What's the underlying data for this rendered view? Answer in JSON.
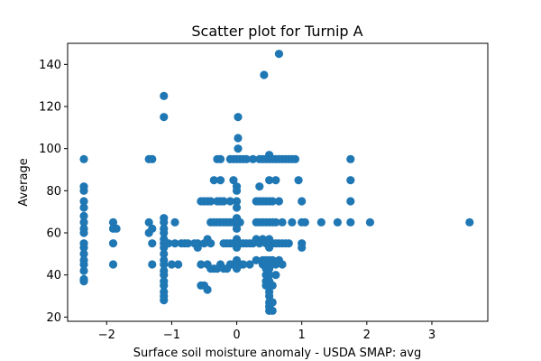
{
  "chart_data": {
    "type": "scatter",
    "title": "Scatter plot for Turnip A",
    "xlabel": "Surface soil moisture anomaly  - USDA SMAP: avg",
    "ylabel": "Average",
    "xlim": [
      -2.6,
      3.86
    ],
    "ylim": [
      18,
      150
    ],
    "xticks": [
      -2,
      -1,
      0,
      1,
      2,
      3
    ],
    "yticks": [
      20,
      40,
      60,
      80,
      100,
      120,
      140
    ],
    "grid": false,
    "marker_color": "#1f77b4",
    "points": [
      [
        -2.35,
        95
      ],
      [
        -2.35,
        82
      ],
      [
        -2.35,
        80
      ],
      [
        -2.35,
        75
      ],
      [
        -2.35,
        72
      ],
      [
        -2.35,
        68
      ],
      [
        -2.35,
        65
      ],
      [
        -2.35,
        62
      ],
      [
        -2.35,
        60
      ],
      [
        -2.35,
        55
      ],
      [
        -2.35,
        53
      ],
      [
        -2.35,
        50
      ],
      [
        -2.35,
        47
      ],
      [
        -2.35,
        45
      ],
      [
        -2.35,
        42
      ],
      [
        -2.35,
        38
      ],
      [
        -2.35,
        37
      ],
      [
        -1.9,
        65
      ],
      [
        -1.9,
        62
      ],
      [
        -1.85,
        62
      ],
      [
        -1.9,
        55
      ],
      [
        -1.9,
        45
      ],
      [
        -1.35,
        95
      ],
      [
        -1.3,
        95
      ],
      [
        -1.35,
        65
      ],
      [
        -1.3,
        62
      ],
      [
        -1.35,
        60
      ],
      [
        -1.3,
        55
      ],
      [
        -1.3,
        45
      ],
      [
        -1.12,
        125
      ],
      [
        -1.12,
        115
      ],
      [
        -1.12,
        67
      ],
      [
        -1.12,
        65
      ],
      [
        -1.12,
        62
      ],
      [
        -1.12,
        60
      ],
      [
        -1.12,
        57
      ],
      [
        -1.12,
        55
      ],
      [
        -1.12,
        53
      ],
      [
        -1.12,
        50
      ],
      [
        -1.12,
        47
      ],
      [
        -1.12,
        45
      ],
      [
        -1.12,
        42
      ],
      [
        -1.12,
        40
      ],
      [
        -1.12,
        37
      ],
      [
        -1.12,
        35
      ],
      [
        -1.12,
        32
      ],
      [
        -1.12,
        30
      ],
      [
        -1.12,
        28
      ],
      [
        -1.05,
        55
      ],
      [
        -1.0,
        45
      ],
      [
        -0.95,
        65
      ],
      [
        -0.95,
        55
      ],
      [
        -0.9,
        45
      ],
      [
        -0.85,
        55
      ],
      [
        -0.8,
        55
      ],
      [
        -0.75,
        55
      ],
      [
        -0.65,
        55
      ],
      [
        -0.6,
        55
      ],
      [
        -0.6,
        53
      ],
      [
        -0.55,
        75
      ],
      [
        -0.55,
        45
      ],
      [
        -0.55,
        35
      ],
      [
        -0.5,
        75
      ],
      [
        -0.5,
        55
      ],
      [
        -0.5,
        35
      ],
      [
        -0.45,
        75
      ],
      [
        -0.45,
        57
      ],
      [
        -0.45,
        45
      ],
      [
        -0.45,
        33
      ],
      [
        -0.4,
        75
      ],
      [
        -0.4,
        65
      ],
      [
        -0.4,
        55
      ],
      [
        -0.4,
        43
      ],
      [
        -0.35,
        85
      ],
      [
        -0.35,
        65
      ],
      [
        -0.35,
        43
      ],
      [
        -0.3,
        95
      ],
      [
        -0.3,
        75
      ],
      [
        -0.3,
        65
      ],
      [
        -0.3,
        43
      ],
      [
        -0.25,
        95
      ],
      [
        -0.25,
        85
      ],
      [
        -0.25,
        75
      ],
      [
        -0.25,
        65
      ],
      [
        -0.25,
        45
      ],
      [
        -0.2,
        75
      ],
      [
        -0.2,
        65
      ],
      [
        -0.2,
        55
      ],
      [
        -0.2,
        43
      ],
      [
        -0.15,
        65
      ],
      [
        -0.15,
        55
      ],
      [
        -0.15,
        43
      ],
      [
        -0.1,
        95
      ],
      [
        -0.1,
        75
      ],
      [
        -0.1,
        65
      ],
      [
        -0.1,
        55
      ],
      [
        -0.1,
        45
      ],
      [
        -0.05,
        95
      ],
      [
        -0.05,
        85
      ],
      [
        -0.05,
        65
      ],
      [
        -0.05,
        55
      ],
      [
        -0.05,
        45
      ],
      [
        0.0,
        95
      ],
      [
        0.0,
        82
      ],
      [
        0.0,
        80
      ],
      [
        0.0,
        75
      ],
      [
        0.0,
        72
      ],
      [
        0.0,
        67
      ],
      [
        0.0,
        65
      ],
      [
        0.0,
        62
      ],
      [
        0.0,
        57
      ],
      [
        0.0,
        55
      ],
      [
        0.0,
        53
      ],
      [
        0.0,
        47
      ],
      [
        0.0,
        45
      ],
      [
        0.0,
        43
      ],
      [
        0.02,
        115
      ],
      [
        0.02,
        105
      ],
      [
        0.02,
        100
      ],
      [
        0.05,
        95
      ],
      [
        0.05,
        65
      ],
      [
        0.05,
        55
      ],
      [
        0.05,
        45
      ],
      [
        0.1,
        95
      ],
      [
        0.1,
        55
      ],
      [
        0.1,
        45
      ],
      [
        0.15,
        95
      ],
      [
        0.15,
        55
      ],
      [
        0.2,
        55
      ],
      [
        0.2,
        45
      ],
      [
        0.25,
        95
      ],
      [
        0.25,
        55
      ],
      [
        0.3,
        75
      ],
      [
        0.3,
        65
      ],
      [
        0.3,
        57
      ],
      [
        0.3,
        47
      ],
      [
        0.35,
        95
      ],
      [
        0.35,
        82
      ],
      [
        0.35,
        75
      ],
      [
        0.35,
        65
      ],
      [
        0.35,
        55
      ],
      [
        0.4,
        95
      ],
      [
        0.4,
        75
      ],
      [
        0.4,
        65
      ],
      [
        0.4,
        57
      ],
      [
        0.4,
        47
      ],
      [
        0.4,
        45
      ],
      [
        0.42,
        135
      ],
      [
        0.45,
        95
      ],
      [
        0.45,
        75
      ],
      [
        0.45,
        65
      ],
      [
        0.45,
        55
      ],
      [
        0.45,
        47
      ],
      [
        0.45,
        43
      ],
      [
        0.45,
        40
      ],
      [
        0.45,
        37
      ],
      [
        0.45,
        35
      ],
      [
        0.5,
        97
      ],
      [
        0.5,
        95
      ],
      [
        0.5,
        85
      ],
      [
        0.5,
        75
      ],
      [
        0.5,
        65
      ],
      [
        0.5,
        57
      ],
      [
        0.5,
        55
      ],
      [
        0.5,
        53
      ],
      [
        0.5,
        47
      ],
      [
        0.5,
        45
      ],
      [
        0.5,
        43
      ],
      [
        0.5,
        40
      ],
      [
        0.5,
        37
      ],
      [
        0.5,
        35
      ],
      [
        0.5,
        32
      ],
      [
        0.5,
        30
      ],
      [
        0.5,
        27
      ],
      [
        0.5,
        25
      ],
      [
        0.5,
        23
      ],
      [
        0.55,
        95
      ],
      [
        0.55,
        75
      ],
      [
        0.55,
        65
      ],
      [
        0.55,
        55
      ],
      [
        0.55,
        47
      ],
      [
        0.55,
        35
      ],
      [
        0.55,
        27
      ],
      [
        0.55,
        23
      ],
      [
        0.6,
        95
      ],
      [
        0.6,
        85
      ],
      [
        0.6,
        65
      ],
      [
        0.6,
        55
      ],
      [
        0.6,
        45
      ],
      [
        0.6,
        40
      ],
      [
        0.65,
        145
      ],
      [
        0.65,
        95
      ],
      [
        0.65,
        75
      ],
      [
        0.65,
        55
      ],
      [
        0.65,
        47
      ],
      [
        0.7,
        95
      ],
      [
        0.7,
        65
      ],
      [
        0.7,
        55
      ],
      [
        0.7,
        45
      ],
      [
        0.75,
        95
      ],
      [
        0.75,
        55
      ],
      [
        0.8,
        95
      ],
      [
        0.8,
        55
      ],
      [
        0.85,
        95
      ],
      [
        0.85,
        65
      ],
      [
        0.9,
        95
      ],
      [
        0.95,
        85
      ],
      [
        1.0,
        75
      ],
      [
        1.0,
        65
      ],
      [
        1.0,
        55
      ],
      [
        1.0,
        53
      ],
      [
        1.05,
        65
      ],
      [
        1.3,
        65
      ],
      [
        1.55,
        65
      ],
      [
        1.75,
        95
      ],
      [
        1.75,
        85
      ],
      [
        1.75,
        75
      ],
      [
        1.75,
        65
      ],
      [
        2.05,
        65
      ],
      [
        3.58,
        65
      ]
    ]
  }
}
